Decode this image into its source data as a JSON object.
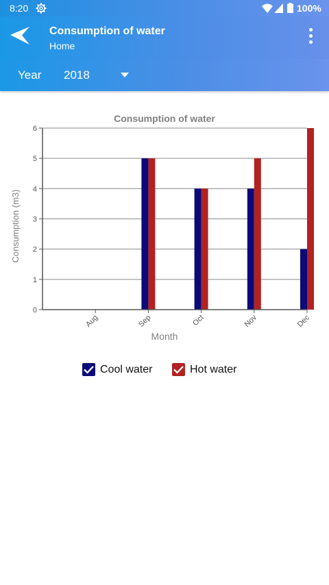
{
  "status_bar": {
    "time": "8:20",
    "battery": "100%",
    "icons": [
      "settings-gear-icon",
      "wifi-icon",
      "signal-icon",
      "battery-icon"
    ]
  },
  "app_bar": {
    "title": "Consumption of water",
    "subtitle": "Home",
    "icons": [
      "back-arrow-icon",
      "more-vert-icon"
    ]
  },
  "filter": {
    "year_label": "Year",
    "year_value": "2018",
    "icon": "dropdown-caret-icon"
  },
  "colors": {
    "cool_water": "#0b0a78",
    "hot_water": "#b22222",
    "header_start": "#1a98e6",
    "header_end": "#6a93ec"
  },
  "chart_data": {
    "type": "bar",
    "title": "Consumption of water",
    "xlabel": "Month",
    "ylabel": "Consumption (m3)",
    "categories": [
      "Aug",
      "Sep",
      "Oct",
      "Nov",
      "Dec"
    ],
    "series": [
      {
        "name": "Cool water",
        "values": [
          0,
          5,
          4,
          4,
          2
        ]
      },
      {
        "name": "Hot water",
        "values": [
          0,
          5,
          4,
          5,
          6
        ]
      }
    ],
    "ylim": [
      0,
      6
    ],
    "yticks": [
      0,
      1,
      2,
      3,
      4,
      5,
      6
    ],
    "grid": true
  },
  "legend": [
    {
      "label": "Cool water",
      "checked": true
    },
    {
      "label": "Hot water",
      "checked": true
    }
  ]
}
